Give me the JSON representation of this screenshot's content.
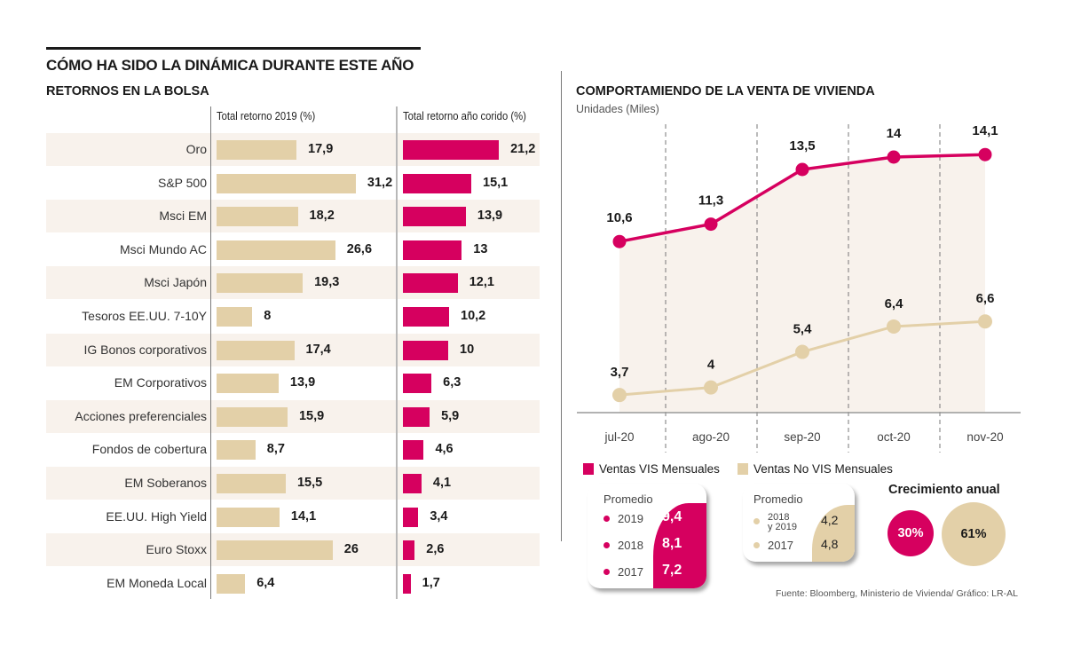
{
  "header": {
    "title": "CÓMO HA SIDO LA DINÁMICA DURANTE ESTE AÑO",
    "subtitle": "RETORNOS EN LA BOLSA"
  },
  "colors": {
    "tan": "#e3d0a8",
    "pink": "#d6005f",
    "row_shade": "#f8f2ec"
  },
  "chart_data": [
    {
      "type": "bar",
      "title": "RETORNOS EN LA BOLSA",
      "categories": [
        "Oro",
        "S&P 500",
        "Msci EM",
        "Msci Mundo AC",
        "Msci Japón",
        "Tesoros EE.UU. 7-10Y",
        "IG Bonos corporativos",
        "EM Corporativos",
        "Acciones preferenciales",
        "Fondos de cobertura",
        "EM Soberanos",
        "EE.UU. High Yield",
        "Euro Stoxx",
        "EM Moneda Local"
      ],
      "series": [
        {
          "name": "Total retorno 2019 (%)",
          "color": "#e3d0a8",
          "values": [
            17.9,
            31.2,
            18.2,
            26.6,
            19.3,
            8,
            17.4,
            13.9,
            15.9,
            8.7,
            15.5,
            14.1,
            26,
            6.4
          ],
          "labels": [
            "17,9",
            "31,2",
            "18,2",
            "26,6",
            "19,3",
            "8",
            "17,4",
            "13,9",
            "15,9",
            "8,7",
            "15,5",
            "14,1",
            "26",
            "6,4"
          ]
        },
        {
          "name": "Total retorno año corido (%)",
          "color": "#d6005f",
          "values": [
            21.2,
            15.1,
            13.9,
            13,
            12.1,
            10.2,
            10,
            6.3,
            5.9,
            4.6,
            4.1,
            3.4,
            2.6,
            1.7
          ],
          "labels": [
            "21,2",
            "15,1",
            "13,9",
            "13",
            "12,1",
            "10,2",
            "10",
            "6,3",
            "5,9",
            "4,6",
            "4,1",
            "3,4",
            "2,6",
            "1,7"
          ]
        }
      ],
      "orientation": "horizontal",
      "grid": false
    },
    {
      "type": "line",
      "title": "COMPORTAMIENDO DE LA VENTA DE VIVIENDA",
      "ylabel": "Unidades (Miles)",
      "x": [
        "jul-20",
        "ago-20",
        "sep-20",
        "oct-20",
        "nov-20"
      ],
      "series": [
        {
          "name": "Ventas VIS Mensuales",
          "color": "#d6005f",
          "values": [
            10.6,
            11.3,
            13.5,
            14,
            14.1
          ],
          "labels": [
            "10,6",
            "11,3",
            "13,5",
            "14",
            "14,1"
          ]
        },
        {
          "name": "Ventas No VIS Mensuales",
          "color": "#e3d0a8",
          "values": [
            3.7,
            4,
            5.4,
            6.4,
            6.6
          ],
          "labels": [
            "3,7",
            "4",
            "5,4",
            "6,4",
            "6,6"
          ]
        }
      ],
      "grid": "vertical dashed",
      "legend": "bottom-left"
    }
  ],
  "line_chart": {
    "title": "COMPORTAMIENDO DE LA VENTA DE VIVIENDA",
    "unit": "Unidades (Miles)"
  },
  "legend": {
    "vis": "Ventas VIS Mensuales",
    "novis": "Ventas No VIS Mensuales"
  },
  "promedio_vis": {
    "title": "Promedio",
    "rows": [
      {
        "year": "2019",
        "value": "9,4"
      },
      {
        "year": "2018",
        "value": "8,1"
      },
      {
        "year": "2017",
        "value": "7,2"
      }
    ]
  },
  "promedio_novis": {
    "title": "Promedio",
    "rows": [
      {
        "year_line1": "2018",
        "year_line2": "y 2019",
        "value": "4,2"
      },
      {
        "year": "2017",
        "value": "4,8"
      }
    ]
  },
  "crecimiento": {
    "title": "Crecimiento anual",
    "vis": "30%",
    "novis": "61%"
  },
  "source": "Fuente: Bloomberg, Ministerio de Vivienda/ Gráfico: LR-AL"
}
